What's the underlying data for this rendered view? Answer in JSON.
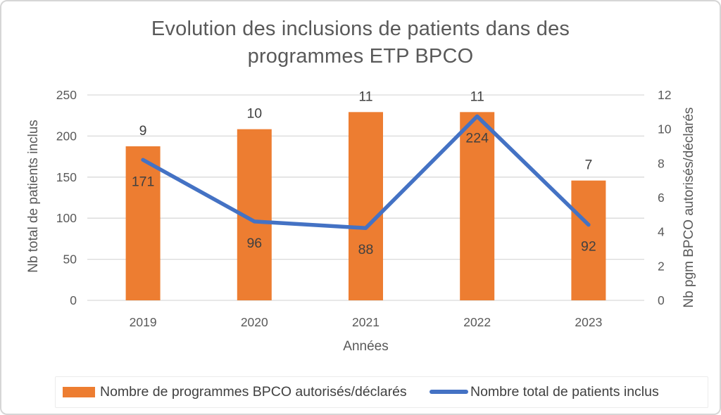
{
  "chart_data": {
    "type": "combo-bar-line",
    "title": "Evolution des inclusions de patients dans des programmes ETP BPCO",
    "title_lines": [
      "Evolution des inclusions de patients dans des",
      "programmes ETP BPCO"
    ],
    "categories": [
      "2019",
      "2020",
      "2021",
      "2022",
      "2023"
    ],
    "series": [
      {
        "name": "Nombre de programmes BPCO autorisés/déclarés",
        "type": "bar",
        "axis": "right",
        "color": "#ED7D31",
        "values": [
          9,
          10,
          11,
          11,
          7
        ]
      },
      {
        "name": "Nombre total de patients inclus",
        "type": "line",
        "axis": "left",
        "color": "#4472C4",
        "values": [
          171,
          96,
          88,
          224,
          92
        ]
      }
    ],
    "xlabel": "Années",
    "left_axis": {
      "title": "Nb total de patients inclus",
      "min": 0,
      "max": 250,
      "step": 50,
      "ticks": [
        0,
        50,
        100,
        150,
        200,
        250
      ]
    },
    "right_axis": {
      "title": "Nb pgm BPCO autorisés/déclarés",
      "min": 0,
      "max": 12,
      "step": 2,
      "ticks": [
        0,
        2,
        4,
        6,
        8,
        10,
        12
      ]
    },
    "grid": true,
    "legend_position": "bottom",
    "colors": {
      "gridline": "#d9d9d9",
      "tick_label": "#595959",
      "data_label": "#404040",
      "title": "#595959"
    }
  }
}
